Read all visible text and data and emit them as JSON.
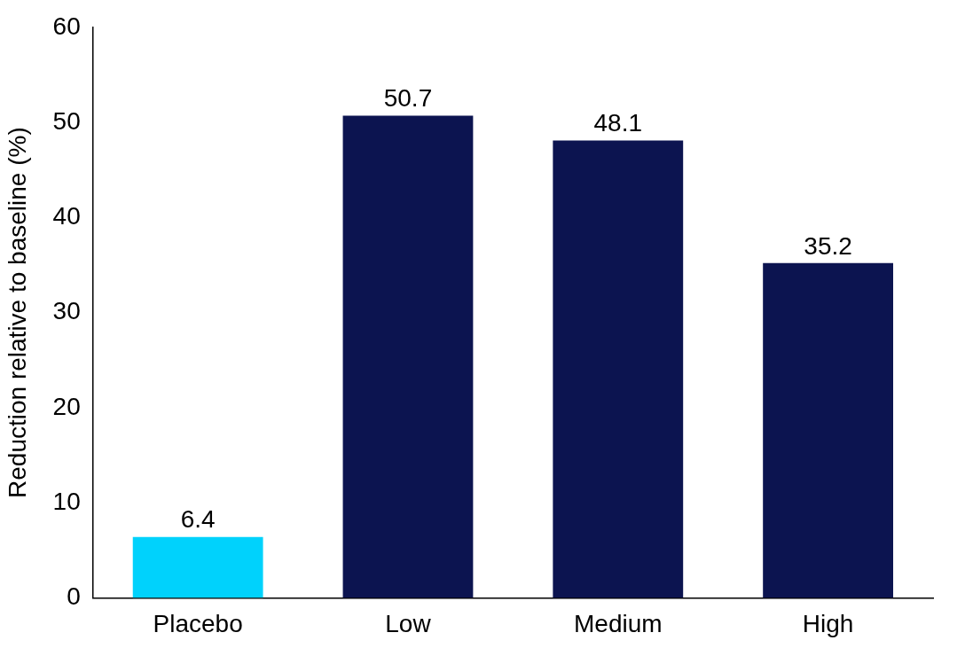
{
  "chart_data": {
    "type": "bar",
    "ylabel": "Reduction relative to baseline (%)",
    "categories": [
      "Placebo",
      "Low",
      "Medium",
      "High"
    ],
    "values": [
      6.4,
      50.7,
      48.1,
      35.2
    ],
    "colors": [
      "#00d2fc",
      "#0c1450",
      "#0c1450",
      "#0c1450"
    ],
    "ylim": [
      0,
      60
    ],
    "yticks": [
      0,
      10,
      20,
      30,
      40,
      50,
      60
    ],
    "data_labels": true,
    "grid": false,
    "legend": false
  }
}
